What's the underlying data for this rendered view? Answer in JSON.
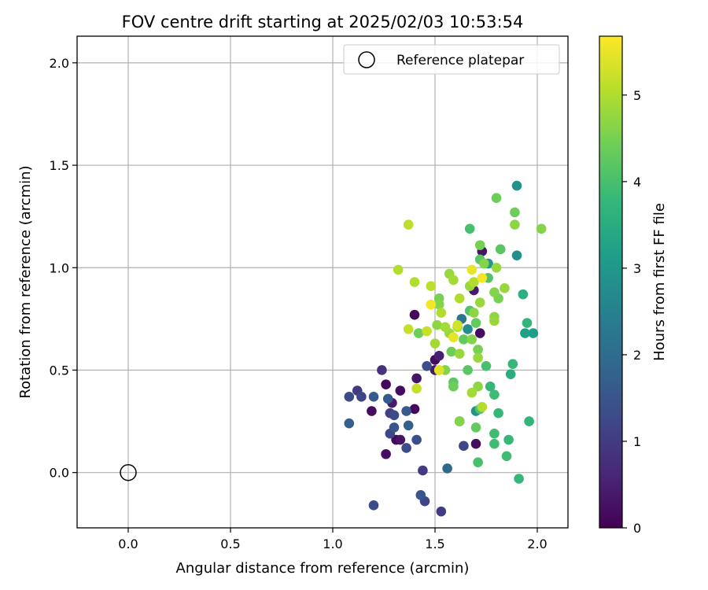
{
  "chart_data": {
    "type": "scatter",
    "title": "FOV centre drift starting at 2025/02/03 10:53:54",
    "xlabel": "Angular distance from reference (arcmin)",
    "ylabel": "Rotation from reference (arcmin)",
    "xlim": [
      -0.25,
      2.15
    ],
    "ylim": [
      -0.27,
      2.13
    ],
    "xticks": [
      0.0,
      0.5,
      1.0,
      1.5,
      2.0
    ],
    "xtick_labels": [
      "0.0",
      "0.5",
      "1.0",
      "1.5",
      "2.0"
    ],
    "yticks": [
      0.0,
      0.5,
      1.0,
      1.5,
      2.0
    ],
    "ytick_labels": [
      "0.0",
      "0.5",
      "1.0",
      "1.5",
      "2.0"
    ],
    "grid": true,
    "legend": {
      "placement": "top-right",
      "entries": [
        "Reference platepar"
      ]
    },
    "reference_point": {
      "x": 0.0,
      "y": 0.0,
      "marker": "open-circle"
    },
    "colorbar": {
      "label": "Hours from first FF file",
      "range": [
        0,
        5.68
      ],
      "ticks": [
        0,
        1,
        2,
        3,
        4,
        5
      ],
      "tick_labels": [
        "0",
        "1",
        "2",
        "3",
        "4",
        "5"
      ],
      "colormap": "viridis"
    },
    "colormap_stops": [
      "#440154",
      "#482878",
      "#3e4989",
      "#31688e",
      "#26828e",
      "#1f9e89",
      "#35b779",
      "#6ece58",
      "#b5de2b",
      "#fde725"
    ],
    "points": [
      {
        "x": 1.31,
        "y": 0.16,
        "h": 0.1
      },
      {
        "x": 1.4,
        "y": 0.31,
        "h": 0.1
      },
      {
        "x": 1.33,
        "y": 0.4,
        "h": 0.2
      },
      {
        "x": 1.26,
        "y": 0.43,
        "h": 0.1
      },
      {
        "x": 1.41,
        "y": 0.46,
        "h": 0.3
      },
      {
        "x": 1.4,
        "y": 0.77,
        "h": 0.1
      },
      {
        "x": 1.19,
        "y": 0.3,
        "h": 0.2
      },
      {
        "x": 1.29,
        "y": 0.34,
        "h": 0.4
      },
      {
        "x": 1.26,
        "y": 0.09,
        "h": 0.2
      },
      {
        "x": 1.33,
        "y": 0.16,
        "h": 0.3
      },
      {
        "x": 1.73,
        "y": 1.08,
        "h": 0.3
      },
      {
        "x": 1.7,
        "y": 0.14,
        "h": 0.2
      },
      {
        "x": 1.69,
        "y": 0.89,
        "h": 0.4
      },
      {
        "x": 1.72,
        "y": 0.68,
        "h": 0.2
      },
      {
        "x": 1.52,
        "y": 0.57,
        "h": 0.5
      },
      {
        "x": 1.5,
        "y": 0.55,
        "h": 0.2
      },
      {
        "x": 1.5,
        "y": 0.5,
        "h": 0.4
      },
      {
        "x": 1.24,
        "y": 0.5,
        "h": 0.8
      },
      {
        "x": 1.12,
        "y": 0.4,
        "h": 1.0
      },
      {
        "x": 1.14,
        "y": 0.37,
        "h": 1.2
      },
      {
        "x": 1.08,
        "y": 0.37,
        "h": 1.3
      },
      {
        "x": 1.28,
        "y": 0.29,
        "h": 1.1
      },
      {
        "x": 1.3,
        "y": 0.28,
        "h": 1.3
      },
      {
        "x": 1.28,
        "y": 0.19,
        "h": 1.2
      },
      {
        "x": 1.3,
        "y": 0.22,
        "h": 1.5
      },
      {
        "x": 1.36,
        "y": 0.12,
        "h": 1.3
      },
      {
        "x": 1.36,
        "y": 0.3,
        "h": 1.6
      },
      {
        "x": 1.41,
        "y": 0.16,
        "h": 1.4
      },
      {
        "x": 1.37,
        "y": 0.23,
        "h": 1.7
      },
      {
        "x": 1.27,
        "y": 0.36,
        "h": 1.6
      },
      {
        "x": 1.2,
        "y": 0.37,
        "h": 1.6
      },
      {
        "x": 1.08,
        "y": 0.24,
        "h": 1.7
      },
      {
        "x": 1.44,
        "y": 0.01,
        "h": 1.0
      },
      {
        "x": 1.45,
        "y": -0.14,
        "h": 1.2
      },
      {
        "x": 1.43,
        "y": -0.11,
        "h": 1.5
      },
      {
        "x": 1.2,
        "y": -0.16,
        "h": 1.3
      },
      {
        "x": 1.53,
        "y": -0.19,
        "h": 1.0
      },
      {
        "x": 1.56,
        "y": 0.02,
        "h": 1.9
      },
      {
        "x": 1.46,
        "y": 0.52,
        "h": 1.4
      },
      {
        "x": 1.64,
        "y": 0.13,
        "h": 1.2
      },
      {
        "x": 1.62,
        "y": 0.25,
        "h": 1.1
      },
      {
        "x": 1.63,
        "y": 0.75,
        "h": 2.2
      },
      {
        "x": 1.9,
        "y": 1.4,
        "h": 2.9
      },
      {
        "x": 1.98,
        "y": 0.68,
        "h": 3.1
      },
      {
        "x": 1.94,
        "y": 0.68,
        "h": 3.2
      },
      {
        "x": 1.9,
        "y": 1.06,
        "h": 2.8
      },
      {
        "x": 1.76,
        "y": 1.02,
        "h": 3.0
      },
      {
        "x": 1.7,
        "y": 0.3,
        "h": 2.9
      },
      {
        "x": 1.66,
        "y": 0.7,
        "h": 2.8
      },
      {
        "x": 1.93,
        "y": 0.87,
        "h": 3.6
      },
      {
        "x": 1.95,
        "y": 0.73,
        "h": 3.7
      },
      {
        "x": 1.87,
        "y": 0.48,
        "h": 3.5
      },
      {
        "x": 1.88,
        "y": 0.53,
        "h": 3.8
      },
      {
        "x": 1.96,
        "y": 0.25,
        "h": 3.7
      },
      {
        "x": 1.91,
        "y": -0.03,
        "h": 3.8
      },
      {
        "x": 1.85,
        "y": 0.08,
        "h": 3.9
      },
      {
        "x": 1.86,
        "y": 0.16,
        "h": 3.8
      },
      {
        "x": 1.79,
        "y": 0.14,
        "h": 3.9
      },
      {
        "x": 1.79,
        "y": 0.19,
        "h": 3.9
      },
      {
        "x": 1.81,
        "y": 0.29,
        "h": 3.8
      },
      {
        "x": 1.79,
        "y": 0.38,
        "h": 3.9
      },
      {
        "x": 1.77,
        "y": 0.42,
        "h": 3.8
      },
      {
        "x": 1.75,
        "y": 0.52,
        "h": 4.0
      },
      {
        "x": 1.71,
        "y": 0.05,
        "h": 4.0
      },
      {
        "x": 1.7,
        "y": 0.22,
        "h": 4.3
      },
      {
        "x": 1.72,
        "y": 0.31,
        "h": 4.1
      },
      {
        "x": 1.67,
        "y": 1.19,
        "h": 4.0
      },
      {
        "x": 1.82,
        "y": 1.09,
        "h": 4.2
      },
      {
        "x": 1.76,
        "y": 0.95,
        "h": 4.1
      },
      {
        "x": 1.72,
        "y": 1.04,
        "h": 4.2
      },
      {
        "x": 1.67,
        "y": 0.79,
        "h": 4.1
      },
      {
        "x": 1.7,
        "y": 0.73,
        "h": 4.3
      },
      {
        "x": 1.61,
        "y": 0.71,
        "h": 4.0
      },
      {
        "x": 1.58,
        "y": 0.59,
        "h": 4.4
      },
      {
        "x": 1.64,
        "y": 0.65,
        "h": 4.3
      },
      {
        "x": 1.66,
        "y": 0.5,
        "h": 4.2
      },
      {
        "x": 1.59,
        "y": 0.42,
        "h": 4.4
      },
      {
        "x": 1.59,
        "y": 0.44,
        "h": 4.2
      },
      {
        "x": 1.55,
        "y": 0.5,
        "h": 4.6
      },
      {
        "x": 1.42,
        "y": 0.68,
        "h": 4.4
      },
      {
        "x": 1.62,
        "y": 0.25,
        "h": 4.6
      },
      {
        "x": 1.8,
        "y": 1.34,
        "h": 4.4
      },
      {
        "x": 1.89,
        "y": 1.27,
        "h": 4.4
      },
      {
        "x": 2.02,
        "y": 1.19,
        "h": 4.6
      },
      {
        "x": 1.89,
        "y": 1.21,
        "h": 4.7
      },
      {
        "x": 1.72,
        "y": 1.11,
        "h": 4.5
      },
      {
        "x": 1.74,
        "y": 1.02,
        "h": 4.6
      },
      {
        "x": 1.8,
        "y": 1.0,
        "h": 4.8
      },
      {
        "x": 1.84,
        "y": 0.9,
        "h": 4.8
      },
      {
        "x": 1.79,
        "y": 0.88,
        "h": 4.6
      },
      {
        "x": 1.81,
        "y": 0.85,
        "h": 4.5
      },
      {
        "x": 1.72,
        "y": 0.83,
        "h": 4.8
      },
      {
        "x": 1.69,
        "y": 0.78,
        "h": 4.7
      },
      {
        "x": 1.79,
        "y": 0.76,
        "h": 4.7
      },
      {
        "x": 1.79,
        "y": 0.74,
        "h": 4.8
      },
      {
        "x": 1.68,
        "y": 0.65,
        "h": 4.6
      },
      {
        "x": 1.71,
        "y": 0.6,
        "h": 4.5
      },
      {
        "x": 1.71,
        "y": 0.56,
        "h": 4.8
      },
      {
        "x": 1.71,
        "y": 0.42,
        "h": 4.7
      },
      {
        "x": 1.73,
        "y": 0.32,
        "h": 5.0
      },
      {
        "x": 1.68,
        "y": 0.39,
        "h": 4.9
      },
      {
        "x": 1.62,
        "y": 0.58,
        "h": 4.8
      },
      {
        "x": 1.52,
        "y": 0.85,
        "h": 4.5
      },
      {
        "x": 1.52,
        "y": 0.82,
        "h": 4.6
      },
      {
        "x": 1.57,
        "y": 0.97,
        "h": 4.8
      },
      {
        "x": 1.59,
        "y": 0.94,
        "h": 4.9
      },
      {
        "x": 1.67,
        "y": 0.91,
        "h": 4.8
      },
      {
        "x": 1.69,
        "y": 0.93,
        "h": 5.0
      },
      {
        "x": 1.62,
        "y": 0.85,
        "h": 5.0
      },
      {
        "x": 1.51,
        "y": 0.72,
        "h": 4.7
      },
      {
        "x": 1.55,
        "y": 0.71,
        "h": 4.9
      },
      {
        "x": 1.53,
        "y": 0.78,
        "h": 5.0
      },
      {
        "x": 1.57,
        "y": 0.68,
        "h": 4.8
      },
      {
        "x": 1.61,
        "y": 0.71,
        "h": 5.0
      },
      {
        "x": 1.5,
        "y": 0.63,
        "h": 4.9
      },
      {
        "x": 1.32,
        "y": 0.99,
        "h": 5.0
      },
      {
        "x": 1.37,
        "y": 1.21,
        "h": 5.1
      },
      {
        "x": 1.4,
        "y": 0.93,
        "h": 5.0
      },
      {
        "x": 1.48,
        "y": 0.91,
        "h": 5.1
      },
      {
        "x": 1.37,
        "y": 0.7,
        "h": 5.2
      },
      {
        "x": 1.46,
        "y": 0.69,
        "h": 5.2
      },
      {
        "x": 1.41,
        "y": 0.41,
        "h": 5.2
      },
      {
        "x": 1.52,
        "y": 0.5,
        "h": 5.3
      },
      {
        "x": 1.59,
        "y": 0.66,
        "h": 5.5
      },
      {
        "x": 1.61,
        "y": 0.72,
        "h": 5.3
      },
      {
        "x": 1.48,
        "y": 0.82,
        "h": 5.6
      },
      {
        "x": 1.68,
        "y": 0.99,
        "h": 5.5
      },
      {
        "x": 1.73,
        "y": 0.95,
        "h": 5.6
      },
      {
        "x": 1.52,
        "y": 0.5,
        "h": 5.4
      }
    ]
  }
}
